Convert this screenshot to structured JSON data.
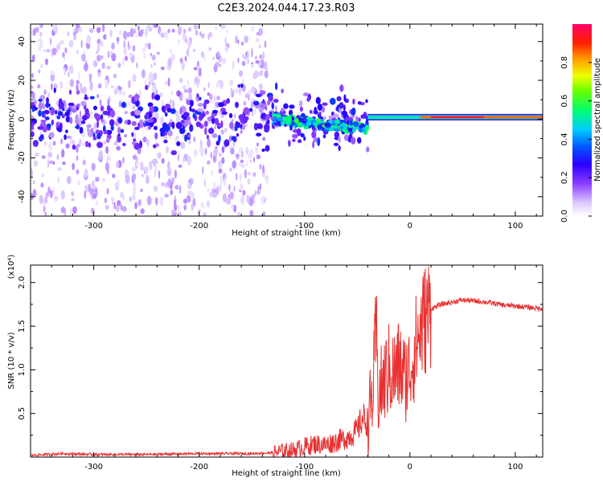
{
  "title": "C2E3.2024.044.17.23.R03",
  "chart_data": [
    {
      "type": "heatmap",
      "title": "C2E3.2024.044.17.23.R03",
      "xlabel": "Height of straight line (km)",
      "ylabel": "Frequency (Hz)",
      "xlim": [
        -360,
        126
      ],
      "ylim": [
        -50,
        49
      ],
      "x_ticks": [
        -300,
        -200,
        -100,
        0,
        100
      ],
      "x_tick_labels": [
        "-300",
        "-200",
        "-100",
        "0",
        "100"
      ],
      "y_ticks": [
        -40,
        -20,
        0,
        20,
        40
      ],
      "y_tick_labels": [
        "-40",
        "-20",
        "0",
        "20",
        "40"
      ],
      "colorbar": {
        "label": "Normalized spectral amplitude",
        "range": [
          0,
          1
        ],
        "ticks": [
          0.0,
          0.2,
          0.4,
          0.6,
          0.8
        ],
        "tick_labels": [
          "0.0",
          "0.2",
          "0.4",
          "0.6",
          "0.8"
        ]
      },
      "features": [
        {
          "name": "diffuse broadband noise",
          "x_range": [
            -360,
            -135
          ],
          "freq_range": [
            -50,
            49
          ],
          "amplitude": 0.05
        },
        {
          "name": "noisy carrier band",
          "x_range": [
            -360,
            -40
          ],
          "freq_center": 0,
          "freq_halfwidth": 12,
          "amplitude": 0.15
        },
        {
          "name": "scintillating carrier",
          "x_range": [
            -130,
            -40
          ],
          "freq_center": -3,
          "amplitude": 0.45
        },
        {
          "name": "stable carrier",
          "x_range": [
            -40,
            126
          ],
          "freq_center": 1,
          "amplitude": 0.95
        }
      ]
    },
    {
      "type": "line",
      "xlabel": "Height of straight line (km)",
      "ylabel": "SNR (10 * v/v)",
      "y_scale_label": "(x10⁴)",
      "xlim": [
        -360,
        126
      ],
      "ylim": [
        0,
        2.2
      ],
      "x_ticks": [
        -300,
        -200,
        -100,
        0,
        100
      ],
      "x_tick_labels": [
        "-300",
        "-200",
        "-100",
        "0",
        "100"
      ],
      "y_ticks": [
        0.5,
        1.0,
        1.5,
        2.0
      ],
      "y_tick_labels": [
        "0.5",
        "1.0",
        "1.5",
        "2.0"
      ],
      "color": "#e83030",
      "series": [
        {
          "name": "SNR",
          "x": [
            -360,
            -330,
            -300,
            -250,
            -200,
            -150,
            -130,
            -110,
            -100,
            -90,
            -80,
            -70,
            -60,
            -50,
            -45,
            -40,
            -35,
            -32,
            -30,
            -25,
            -20,
            -15,
            -10,
            -5,
            0,
            5,
            10,
            15,
            20,
            30,
            50,
            70,
            90,
            100,
            110,
            126
          ],
          "y": [
            0.02,
            0.04,
            0.03,
            0.03,
            0.04,
            0.04,
            0.05,
            0.08,
            0.12,
            0.15,
            0.14,
            0.18,
            0.22,
            0.3,
            0.45,
            0.4,
            0.75,
            1.45,
            0.7,
            0.85,
            1.0,
            0.95,
            1.05,
            0.9,
            1.0,
            1.25,
            1.45,
            1.6,
            1.7,
            1.75,
            1.8,
            1.78,
            1.74,
            1.73,
            1.72,
            1.7
          ]
        }
      ]
    }
  ]
}
